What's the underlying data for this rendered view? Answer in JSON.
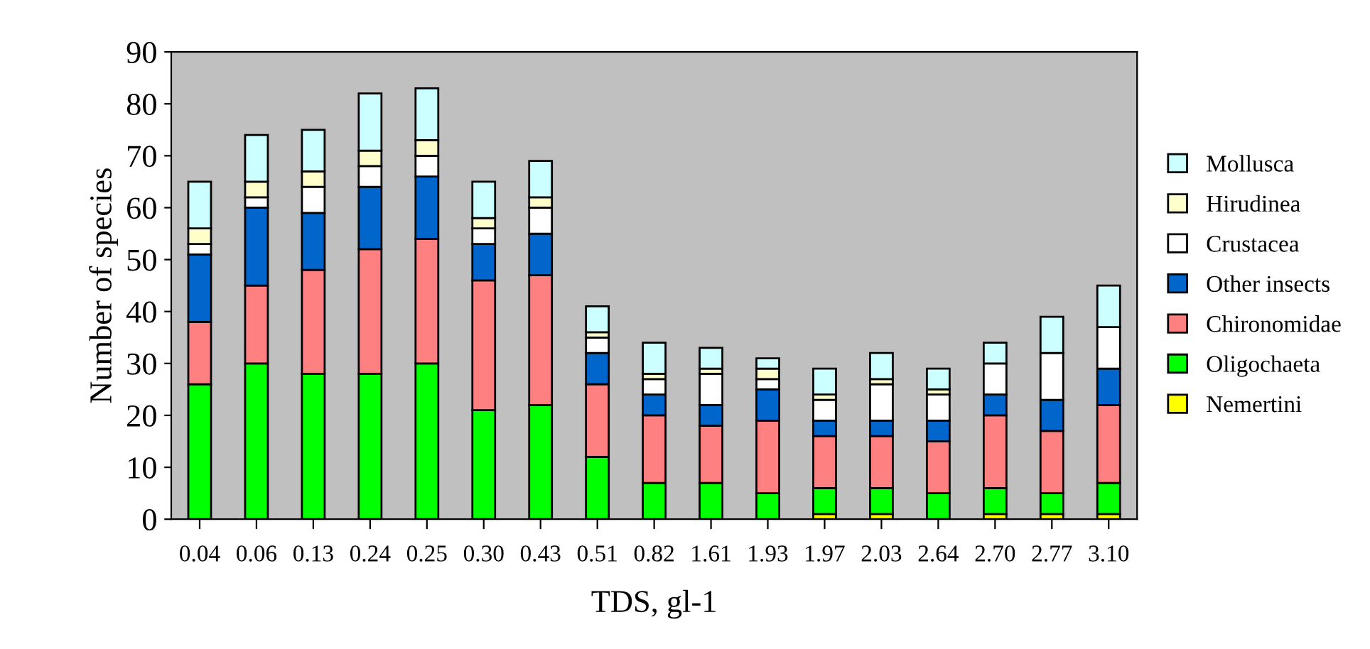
{
  "chart_data": {
    "type": "bar",
    "stacked": true,
    "xlabel": "TDS, gl-1",
    "ylabel": "Number of species",
    "categories": [
      "0.04",
      "0.06",
      "0.13",
      "0.24",
      "0.25",
      "0.30",
      "0.43",
      "0.51",
      "0.82",
      "1.61",
      "1.93",
      "1.97",
      "2.03",
      "2.64",
      "2.70",
      "2.77",
      "3.10"
    ],
    "ylim": [
      0,
      90
    ],
    "yticks": [
      0,
      10,
      20,
      30,
      40,
      50,
      60,
      70,
      80,
      90
    ],
    "grid": false,
    "legend": "right",
    "series": [
      {
        "name": "Nemertini",
        "color": "#ffff00",
        "values": [
          0,
          0,
          0,
          0,
          0,
          0,
          0,
          0,
          0,
          0,
          0,
          1,
          1,
          0,
          1,
          1,
          1
        ]
      },
      {
        "name": "Oligochaeta",
        "color": "#00ff00",
        "values": [
          26,
          30,
          28,
          28,
          30,
          21,
          22,
          12,
          7,
          7,
          5,
          5,
          5,
          5,
          5,
          4,
          6
        ]
      },
      {
        "name": "Chironomidae",
        "color": "#ff8080",
        "values": [
          12,
          15,
          20,
          24,
          24,
          25,
          25,
          14,
          13,
          11,
          14,
          10,
          10,
          10,
          14,
          12,
          15
        ]
      },
      {
        "name": "Other insects",
        "color": "#0066cc",
        "values": [
          13,
          15,
          11,
          12,
          12,
          7,
          8,
          6,
          4,
          4,
          6,
          3,
          3,
          4,
          4,
          6,
          7
        ]
      },
      {
        "name": "Crustacea",
        "color": "#ffffff",
        "values": [
          2,
          2,
          5,
          4,
          4,
          3,
          5,
          3,
          3,
          6,
          2,
          4,
          7,
          5,
          6,
          9,
          8
        ]
      },
      {
        "name": "Hirudinea",
        "color": "#ffffcc",
        "values": [
          3,
          3,
          3,
          3,
          3,
          2,
          2,
          1,
          1,
          1,
          2,
          1,
          1,
          1,
          0,
          0,
          0
        ]
      },
      {
        "name": "Mollusca",
        "color": "#ccffff",
        "values": [
          9,
          9,
          8,
          11,
          10,
          7,
          7,
          5,
          6,
          4,
          2,
          5,
          5,
          4,
          4,
          7,
          8
        ]
      }
    ]
  }
}
